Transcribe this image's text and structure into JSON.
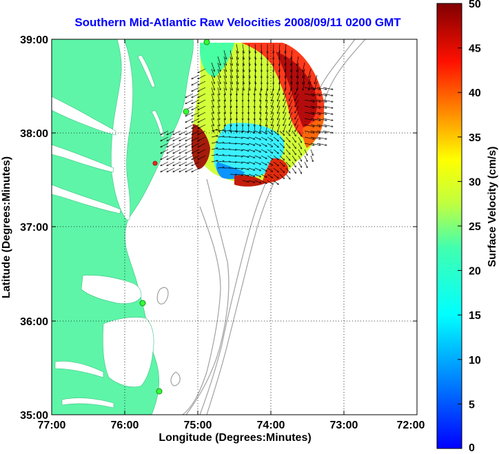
{
  "title": "Southern Mid-Atlantic Raw Velocities 2008/09/11 0200 GMT",
  "chart_data": {
    "type": "heatmap",
    "title": "Southern Mid-Atlantic Raw Velocities 2008/09/11 0200 GMT",
    "xlabel": "Longitude (Degrees:Minutes)",
    "ylabel": "Latitude (Degrees:Minutes)",
    "x_ticks": [
      "77:00",
      "76:00",
      "75:00",
      "74:00",
      "73:00",
      "72:00"
    ],
    "y_ticks": [
      "39:00",
      "38:00",
      "37:00",
      "36:00",
      "35:00"
    ],
    "xlim": [
      -77,
      -72
    ],
    "ylim": [
      35,
      39
    ],
    "grid": "dotted",
    "colorbar": {
      "label": "Surface Velocity (cm/s)",
      "ticks": [
        "0",
        "5",
        "10",
        "15",
        "20",
        "25",
        "30",
        "35",
        "40",
        "45",
        "50"
      ],
      "range": [
        0,
        50
      ],
      "colormap": "jet"
    }
  },
  "colors": {
    "land": "#5ef5a8",
    "water": "#ffffff",
    "title": "#0000ff",
    "bathymetry": "#a0a0a0",
    "station": "#33ff33"
  }
}
